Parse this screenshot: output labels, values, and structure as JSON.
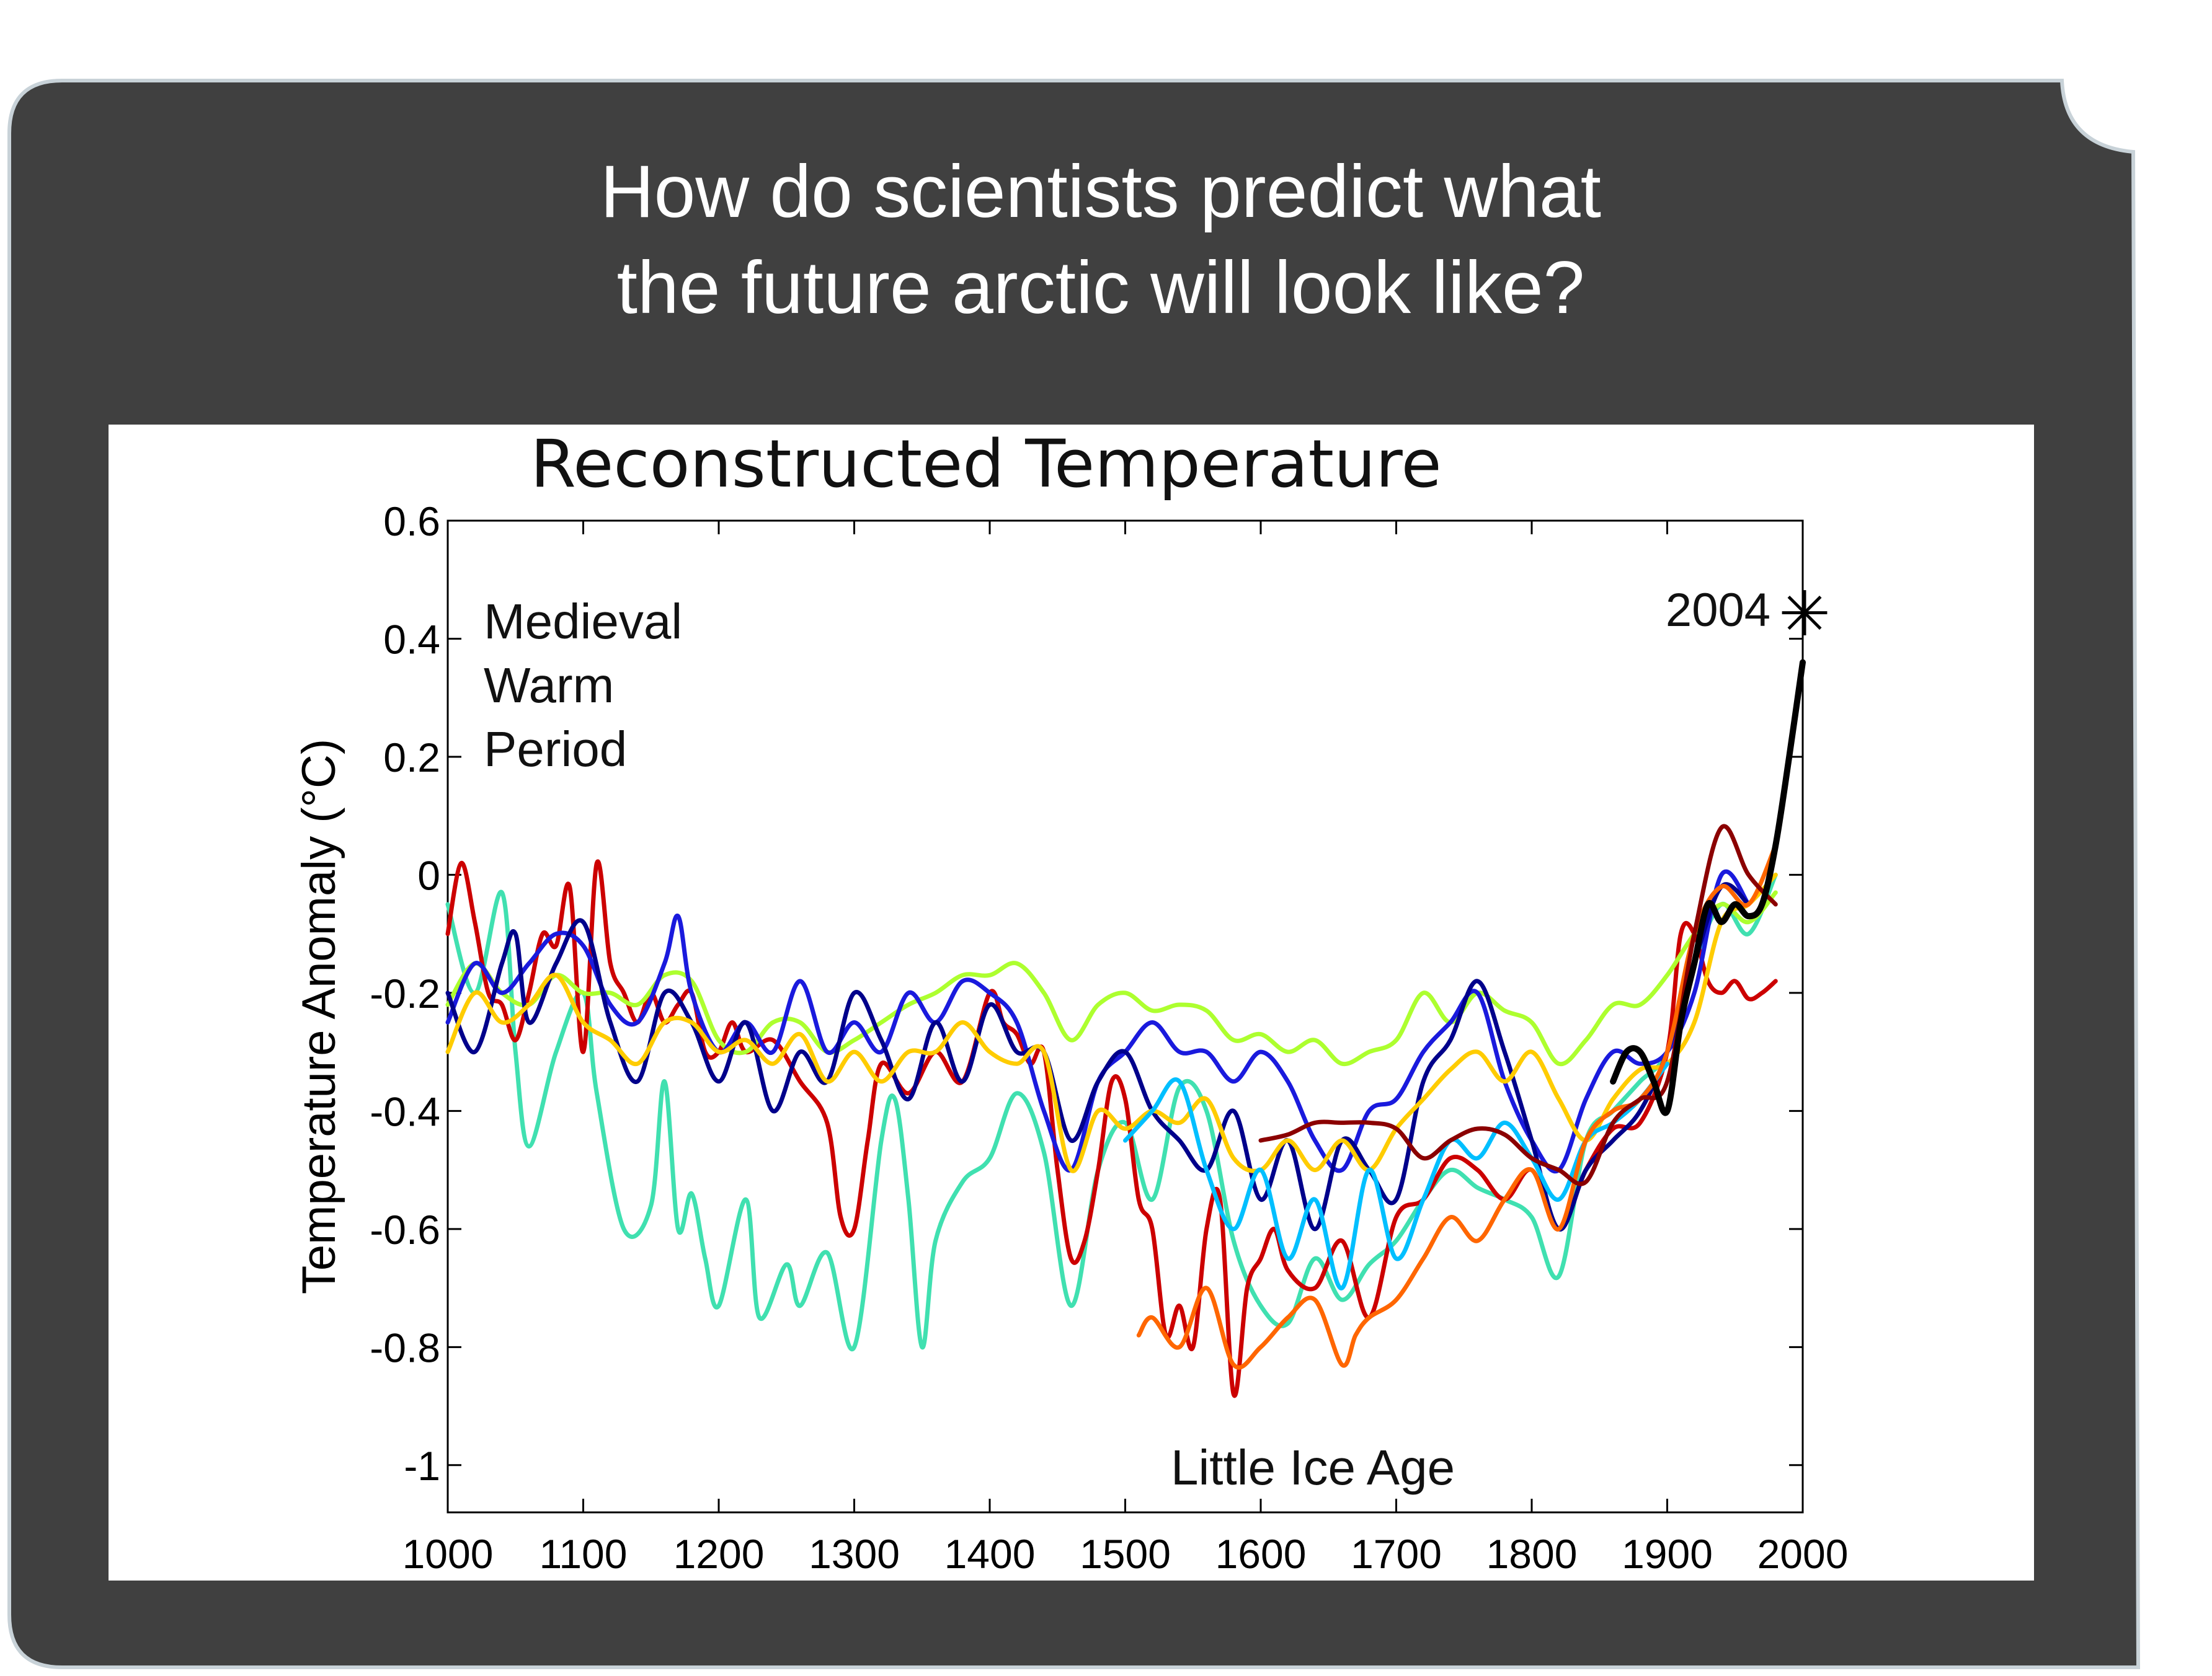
{
  "slide": {
    "title_line1": "How do scientists predict what",
    "title_line2": "the future arctic will look like?",
    "panel_color": "#404040",
    "title_color": "#ffffff"
  },
  "chart_data": {
    "type": "line",
    "title": "Reconstructed Temperature",
    "xlabel": "",
    "ylabel": "Temperature Anomaly (°C)",
    "xlim": [
      1000,
      2000
    ],
    "ylim": [
      -1.08,
      0.6
    ],
    "xticks": [
      "1000",
      "1100",
      "1200",
      "1300",
      "1400",
      "1500",
      "1600",
      "1700",
      "1800",
      "1900",
      "2000"
    ],
    "yticks": [
      "0.6",
      "0.4",
      "0.2",
      "0",
      "-0.2",
      "-0.4",
      "-0.6",
      "-0.8",
      "-1"
    ],
    "grid": false,
    "legend": "none",
    "annotations": {
      "medieval_line1": "Medieval",
      "medieval_line2": "Warm",
      "medieval_line3": "Period",
      "little_ice_age": "Little Ice Age",
      "year_2004": "2004"
    },
    "marker_2004": {
      "x": 2004,
      "y": 0.45,
      "symbol": "*"
    },
    "series": [
      {
        "color": "#40E0B0",
        "x": [
          1000,
          1020,
          1040,
          1050,
          1060,
          1080,
          1100,
          1110,
          1130,
          1150,
          1160,
          1170,
          1180,
          1190,
          1200,
          1220,
          1230,
          1250,
          1260,
          1280,
          1300,
          1320,
          1330,
          1340,
          1350,
          1360,
          1380,
          1400,
          1420,
          1440,
          1460,
          1480,
          1500,
          1520,
          1540,
          1560,
          1580,
          1600,
          1620,
          1640,
          1660,
          1680,
          1700,
          1720,
          1740,
          1760,
          1780,
          1800,
          1820,
          1840,
          1860,
          1880,
          1900,
          1920,
          1940,
          1960,
          1980
        ],
        "y": [
          -0.05,
          -0.2,
          -0.03,
          -0.3,
          -0.46,
          -0.3,
          -0.2,
          -0.37,
          -0.6,
          -0.56,
          -0.35,
          -0.6,
          -0.54,
          -0.65,
          -0.73,
          -0.55,
          -0.75,
          -0.66,
          -0.73,
          -0.64,
          -0.8,
          -0.45,
          -0.38,
          -0.55,
          -0.8,
          -0.62,
          -0.52,
          -0.48,
          -0.37,
          -0.47,
          -0.73,
          -0.5,
          -0.42,
          -0.55,
          -0.36,
          -0.4,
          -0.62,
          -0.73,
          -0.76,
          -0.65,
          -0.72,
          -0.66,
          -0.62,
          -0.55,
          -0.5,
          -0.53,
          -0.55,
          -0.58,
          -0.68,
          -0.45,
          -0.4,
          -0.35,
          -0.3,
          -0.15,
          -0.05,
          -0.1,
          0.0
        ]
      },
      {
        "color": "#CC0000",
        "x": [
          1000,
          1010,
          1020,
          1030,
          1040,
          1050,
          1060,
          1070,
          1080,
          1090,
          1100,
          1110,
          1120,
          1130,
          1140,
          1150,
          1160,
          1170,
          1180,
          1190,
          1200,
          1210,
          1220,
          1240,
          1260,
          1280,
          1290,
          1300,
          1310,
          1320,
          1340,
          1360,
          1380,
          1400,
          1410,
          1420,
          1430,
          1440,
          1450,
          1460,
          1470,
          1480,
          1490,
          1500,
          1510,
          1520,
          1530,
          1540,
          1550,
          1560,
          1570,
          1580,
          1590,
          1600,
          1610,
          1620,
          1640,
          1660,
          1680,
          1700,
          1720,
          1740,
          1760,
          1780,
          1800,
          1820,
          1840,
          1860,
          1880,
          1900,
          1910,
          1920,
          1930,
          1940,
          1950,
          1960,
          1970,
          1980
        ],
        "y": [
          -0.1,
          0.02,
          -0.08,
          -0.2,
          -0.22,
          -0.28,
          -0.2,
          -0.1,
          -0.12,
          -0.02,
          -0.3,
          0.02,
          -0.15,
          -0.2,
          -0.25,
          -0.2,
          -0.25,
          -0.22,
          -0.2,
          -0.3,
          -0.3,
          -0.25,
          -0.3,
          -0.28,
          -0.35,
          -0.42,
          -0.58,
          -0.6,
          -0.45,
          -0.32,
          -0.37,
          -0.3,
          -0.35,
          -0.2,
          -0.25,
          -0.27,
          -0.32,
          -0.3,
          -0.5,
          -0.65,
          -0.62,
          -0.5,
          -0.35,
          -0.38,
          -0.55,
          -0.6,
          -0.78,
          -0.73,
          -0.8,
          -0.6,
          -0.55,
          -0.88,
          -0.7,
          -0.65,
          -0.6,
          -0.67,
          -0.7,
          -0.62,
          -0.75,
          -0.58,
          -0.55,
          -0.48,
          -0.5,
          -0.55,
          -0.5,
          -0.6,
          -0.5,
          -0.43,
          -0.42,
          -0.3,
          -0.1,
          -0.1,
          -0.18,
          -0.2,
          -0.18,
          -0.21,
          -0.2,
          -0.18
        ]
      },
      {
        "color": "#ADFF2F",
        "x": [
          1000,
          1020,
          1040,
          1060,
          1080,
          1100,
          1120,
          1140,
          1160,
          1180,
          1200,
          1220,
          1240,
          1260,
          1280,
          1300,
          1320,
          1340,
          1360,
          1380,
          1400,
          1420,
          1440,
          1460,
          1480,
          1500,
          1520,
          1540,
          1560,
          1580,
          1600,
          1620,
          1640,
          1660,
          1680,
          1700,
          1720,
          1740,
          1760,
          1780,
          1800,
          1820,
          1840,
          1860,
          1880,
          1900,
          1920,
          1940,
          1960,
          1980
        ],
        "y": [
          -0.22,
          -0.15,
          -0.2,
          -0.22,
          -0.17,
          -0.2,
          -0.2,
          -0.22,
          -0.17,
          -0.18,
          -0.28,
          -0.3,
          -0.25,
          -0.25,
          -0.3,
          -0.28,
          -0.25,
          -0.22,
          -0.2,
          -0.17,
          -0.17,
          -0.15,
          -0.2,
          -0.28,
          -0.22,
          -0.2,
          -0.23,
          -0.22,
          -0.23,
          -0.28,
          -0.27,
          -0.3,
          -0.28,
          -0.32,
          -0.3,
          -0.28,
          -0.2,
          -0.25,
          -0.2,
          -0.23,
          -0.25,
          -0.32,
          -0.28,
          -0.22,
          -0.22,
          -0.17,
          -0.1,
          -0.05,
          -0.08,
          -0.03
        ]
      },
      {
        "color": "#1A1ADD",
        "x": [
          1000,
          1020,
          1040,
          1060,
          1080,
          1100,
          1120,
          1140,
          1160,
          1170,
          1180,
          1200,
          1220,
          1240,
          1260,
          1280,
          1300,
          1320,
          1340,
          1360,
          1380,
          1400,
          1420,
          1440,
          1460,
          1480,
          1500,
          1520,
          1540,
          1560,
          1580,
          1600,
          1620,
          1640,
          1660,
          1680,
          1700,
          1720,
          1740,
          1760,
          1780,
          1800,
          1820,
          1840,
          1860,
          1880,
          1900,
          1920,
          1940,
          1960
        ],
        "y": [
          -0.25,
          -0.15,
          -0.2,
          -0.15,
          -0.1,
          -0.12,
          -0.22,
          -0.25,
          -0.15,
          -0.07,
          -0.2,
          -0.3,
          -0.25,
          -0.3,
          -0.18,
          -0.3,
          -0.25,
          -0.3,
          -0.2,
          -0.25,
          -0.18,
          -0.2,
          -0.25,
          -0.4,
          -0.5,
          -0.35,
          -0.3,
          -0.25,
          -0.3,
          -0.3,
          -0.35,
          -0.3,
          -0.35,
          -0.45,
          -0.5,
          -0.4,
          -0.38,
          -0.3,
          -0.25,
          -0.2,
          -0.35,
          -0.45,
          -0.5,
          -0.38,
          -0.3,
          -0.32,
          -0.3,
          -0.2,
          0.0,
          -0.05
        ]
      },
      {
        "color": "#00008B",
        "x": [
          1000,
          1020,
          1040,
          1050,
          1060,
          1080,
          1100,
          1120,
          1140,
          1160,
          1180,
          1200,
          1220,
          1240,
          1260,
          1280,
          1300,
          1320,
          1340,
          1360,
          1380,
          1400,
          1420,
          1440,
          1460,
          1480,
          1500,
          1520,
          1540,
          1560,
          1580,
          1600,
          1620,
          1640,
          1660,
          1680,
          1700,
          1720,
          1740,
          1760,
          1780,
          1800,
          1820,
          1840,
          1860,
          1880,
          1900,
          1920,
          1940,
          1960
        ],
        "y": [
          -0.2,
          -0.3,
          -0.15,
          -0.1,
          -0.25,
          -0.15,
          -0.08,
          -0.25,
          -0.35,
          -0.2,
          -0.25,
          -0.35,
          -0.25,
          -0.4,
          -0.3,
          -0.35,
          -0.2,
          -0.28,
          -0.38,
          -0.25,
          -0.35,
          -0.22,
          -0.3,
          -0.3,
          -0.45,
          -0.35,
          -0.3,
          -0.4,
          -0.45,
          -0.5,
          -0.4,
          -0.55,
          -0.45,
          -0.6,
          -0.45,
          -0.5,
          -0.55,
          -0.35,
          -0.28,
          -0.18,
          -0.3,
          -0.45,
          -0.6,
          -0.5,
          -0.45,
          -0.4,
          -0.3,
          -0.15,
          -0.02,
          -0.05
        ]
      },
      {
        "color": "#FFCC00",
        "x": [
          1000,
          1020,
          1040,
          1060,
          1080,
          1100,
          1120,
          1140,
          1160,
          1180,
          1200,
          1220,
          1240,
          1260,
          1280,
          1300,
          1320,
          1340,
          1360,
          1380,
          1400,
          1420,
          1440,
          1460,
          1480,
          1500,
          1520,
          1540,
          1560,
          1580,
          1600,
          1620,
          1640,
          1660,
          1680,
          1700,
          1720,
          1740,
          1760,
          1780,
          1800,
          1820,
          1840,
          1860,
          1880,
          1900,
          1920,
          1940,
          1960,
          1980
        ],
        "y": [
          -0.3,
          -0.2,
          -0.25,
          -0.22,
          -0.17,
          -0.25,
          -0.28,
          -0.32,
          -0.25,
          -0.25,
          -0.3,
          -0.28,
          -0.32,
          -0.27,
          -0.35,
          -0.3,
          -0.35,
          -0.3,
          -0.3,
          -0.25,
          -0.3,
          -0.32,
          -0.3,
          -0.5,
          -0.4,
          -0.43,
          -0.4,
          -0.42,
          -0.38,
          -0.48,
          -0.5,
          -0.45,
          -0.5,
          -0.45,
          -0.5,
          -0.43,
          -0.38,
          -0.33,
          -0.3,
          -0.35,
          -0.3,
          -0.38,
          -0.45,
          -0.38,
          -0.33,
          -0.32,
          -0.25,
          -0.08,
          -0.05,
          0.0
        ]
      },
      {
        "color": "#00BFFF",
        "x": [
          1500,
          1520,
          1540,
          1560,
          1580,
          1600,
          1620,
          1640,
          1660,
          1680,
          1700,
          1720,
          1740,
          1760,
          1780,
          1800,
          1820,
          1840,
          1860,
          1880,
          1900
        ],
        "y": [
          -0.45,
          -0.4,
          -0.35,
          -0.5,
          -0.6,
          -0.5,
          -0.65,
          -0.55,
          -0.7,
          -0.5,
          -0.65,
          -0.55,
          -0.45,
          -0.48,
          -0.42,
          -0.48,
          -0.55,
          -0.45,
          -0.42,
          -0.38,
          -0.32
        ]
      },
      {
        "color": "#FF6600",
        "x": [
          1510,
          1520,
          1540,
          1560,
          1580,
          1600,
          1620,
          1640,
          1660,
          1670,
          1680,
          1700,
          1720,
          1740,
          1760,
          1780,
          1800,
          1820,
          1840,
          1860,
          1880,
          1900,
          1920,
          1940,
          1960,
          1980
        ],
        "y": [
          -0.78,
          -0.75,
          -0.8,
          -0.7,
          -0.83,
          -0.8,
          -0.75,
          -0.72,
          -0.83,
          -0.78,
          -0.75,
          -0.72,
          -0.65,
          -0.58,
          -0.62,
          -0.55,
          -0.5,
          -0.6,
          -0.45,
          -0.4,
          -0.38,
          -0.3,
          -0.1,
          -0.02,
          -0.05,
          0.05
        ]
      },
      {
        "color": "#8B0000",
        "x": [
          1600,
          1620,
          1640,
          1660,
          1680,
          1700,
          1720,
          1740,
          1760,
          1780,
          1800,
          1820,
          1840,
          1860,
          1880,
          1900,
          1920,
          1940,
          1960,
          1980
        ],
        "y": [
          -0.45,
          -0.44,
          -0.42,
          -0.42,
          -0.42,
          -0.43,
          -0.48,
          -0.45,
          -0.43,
          -0.44,
          -0.48,
          -0.5,
          -0.52,
          -0.42,
          -0.38,
          -0.35,
          -0.1,
          0.08,
          0.0,
          -0.05
        ]
      },
      {
        "color": "#000000",
        "x": [
          1860,
          1870,
          1880,
          1890,
          1900,
          1910,
          1920,
          1930,
          1940,
          1950,
          1960,
          1970,
          1980,
          1990,
          2000
        ],
        "y": [
          -0.35,
          -0.3,
          -0.3,
          -0.35,
          -0.4,
          -0.25,
          -0.15,
          -0.05,
          -0.08,
          -0.05,
          -0.07,
          -0.05,
          0.05,
          0.2,
          0.36
        ]
      }
    ]
  }
}
